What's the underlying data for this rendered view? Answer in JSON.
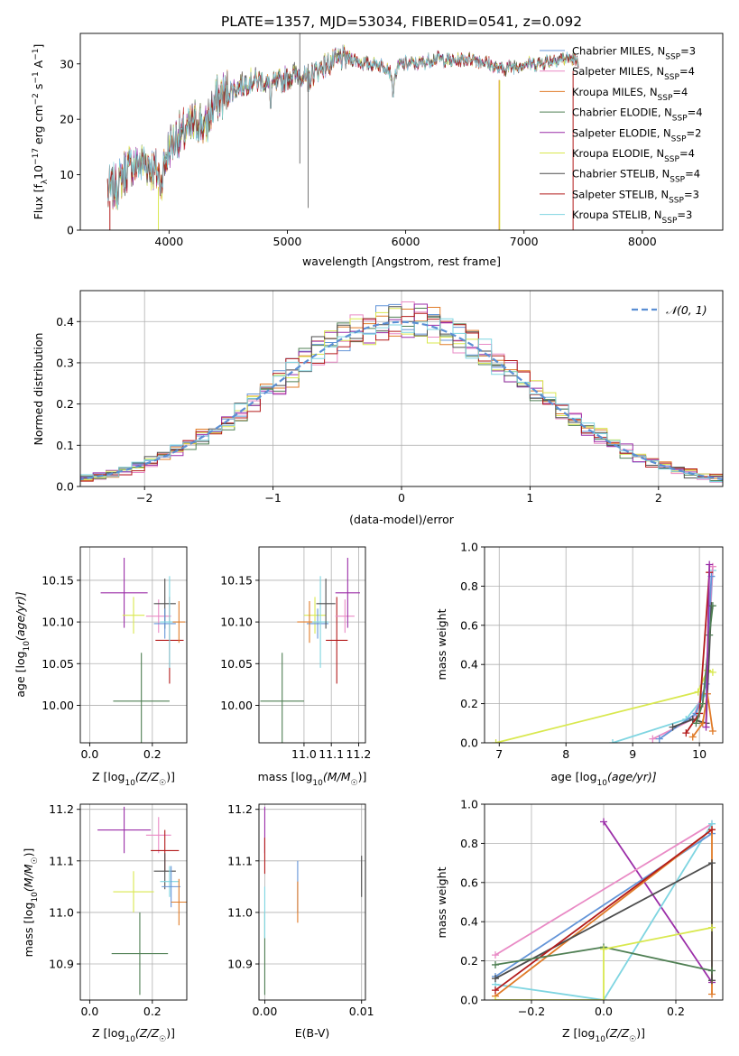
{
  "figure_title": "PLATE=1357, MJD=53034, FIBERID=0541, z=0.092",
  "colors": {
    "Chabrier MILES": "#6495d8",
    "Salpeter MILES": "#e98ac5",
    "Kroupa MILES": "#e07b28",
    "Chabrier ELODIE": "#4f7f53",
    "Salpeter ELODIE": "#9b2ea8",
    "Kroupa ELODIE": "#d9e84f",
    "Chabrier STELIB": "#4d4d4d",
    "Salpeter STELIB": "#b31b1b",
    "Kroupa STELIB": "#7fd5e1",
    "gauss": "#5b8fd4",
    "grid": "#b0b0b0"
  },
  "chart_data": [
    {
      "id": "spectrum",
      "type": "line",
      "title": "PLATE=1357, MJD=53034, FIBERID=0541, z=0.092",
      "xlabel": "wavelength [Angstrom, rest frame]",
      "ylabel": "Flux [f_λ 10⁻¹⁷ erg cm⁻² s⁻¹ A⁻¹]",
      "ylabel_parts": [
        "Flux [f",
        "λ",
        "10",
        "−17",
        " erg cm",
        "−2",
        " s",
        "−1",
        " A",
        "−1",
        "]"
      ],
      "xlim": [
        3250,
        8680
      ],
      "ylim": [
        0,
        35.5
      ],
      "xticks": [
        4000,
        5000,
        6000,
        7000,
        8000
      ],
      "yticks": [
        0,
        10,
        20,
        30
      ],
      "grid": false,
      "legend_position": "top-right",
      "continuum_points": [
        [
          3480,
          7
        ],
        [
          3560,
          8
        ],
        [
          3640,
          11
        ],
        [
          3720,
          12
        ],
        [
          3800,
          12
        ],
        [
          3880,
          11
        ],
        [
          3930,
          9
        ],
        [
          4000,
          15
        ],
        [
          4080,
          17
        ],
        [
          4150,
          18
        ],
        [
          4250,
          20
        ],
        [
          4300,
          18
        ],
        [
          4380,
          23
        ],
        [
          4500,
          25
        ],
        [
          4600,
          26
        ],
        [
          4700,
          27
        ],
        [
          4780,
          27
        ],
        [
          4860,
          26
        ],
        [
          4950,
          27
        ],
        [
          5050,
          28
        ],
        [
          5120,
          28
        ],
        [
          5170,
          27
        ],
        [
          5250,
          29
        ],
        [
          5350,
          30
        ],
        [
          5450,
          31
        ],
        [
          5550,
          31
        ],
        [
          5650,
          30
        ],
        [
          5750,
          30
        ],
        [
          5850,
          29.5
        ],
        [
          5893,
          27
        ],
        [
          5950,
          30
        ],
        [
          6100,
          30
        ],
        [
          6250,
          31
        ],
        [
          6400,
          30.5
        ],
        [
          6563,
          31
        ],
        [
          6700,
          30
        ],
        [
          6800,
          29
        ],
        [
          6900,
          29.5
        ],
        [
          7000,
          30
        ],
        [
          7100,
          30
        ],
        [
          7200,
          30.5
        ],
        [
          7300,
          31
        ],
        [
          7400,
          31
        ],
        [
          7460,
          30
        ]
      ],
      "wavelength_range": [
        3480,
        7460
      ],
      "dips": [
        [
          5893,
          24
        ],
        [
          3934,
          10
        ],
        [
          4861,
          22
        ],
        [
          5175,
          25
        ]
      ],
      "spikes": [
        {
          "x": 5105,
          "top": 35.5,
          "bottom": 12
        },
        {
          "x": 5175,
          "top": 30,
          "bottom": 4
        }
      ],
      "edges": [
        {
          "x": 3500,
          "color": "#b31b1b"
        },
        {
          "x": 3910,
          "color": "#d9e84f"
        },
        {
          "x": 6790,
          "color": "#e07b28"
        },
        {
          "x": 6795,
          "color": "#d9e84f"
        },
        {
          "x": 7415,
          "color": "#b31b1b"
        }
      ],
      "series": [
        {
          "name": "Chabrier MILES",
          "label": "Chabrier MILES, N",
          "sub": "SSP",
          "n": "=3"
        },
        {
          "name": "Salpeter MILES",
          "label": "Salpeter MILES, N",
          "sub": "SSP",
          "n": "=4"
        },
        {
          "name": "Kroupa MILES",
          "label": "Kroupa MILES, N",
          "sub": "SSP",
          "n": "=4"
        },
        {
          "name": "Chabrier ELODIE",
          "label": "Chabrier ELODIE, N",
          "sub": "SSP",
          "n": "=4"
        },
        {
          "name": "Salpeter ELODIE",
          "label": "Salpeter ELODIE, N",
          "sub": "SSP",
          "n": "=2"
        },
        {
          "name": "Kroupa ELODIE",
          "label": "Kroupa ELODIE, N",
          "sub": "SSP",
          "n": "=4"
        },
        {
          "name": "Chabrier STELIB",
          "label": "Chabrier STELIB, N",
          "sub": "SSP",
          "n": "=4"
        },
        {
          "name": "Salpeter STELIB",
          "label": "Salpeter STELIB, N",
          "sub": "SSP",
          "n": "=3"
        },
        {
          "name": "Kroupa STELIB",
          "label": "Kroupa STELIB, N",
          "sub": "SSP",
          "n": "=3"
        }
      ]
    },
    {
      "id": "residuals",
      "type": "histogram",
      "xlabel": "(data-model)/error",
      "ylabel": "Normed distribution",
      "xlim": [
        -2.5,
        2.5
      ],
      "ylim": [
        0,
        0.475
      ],
      "xticks": [
        -2,
        -1,
        0,
        1,
        2
      ],
      "yticks": [
        0.0,
        0.1,
        0.2,
        0.3,
        0.4
      ],
      "grid": true,
      "bin_width": 0.1,
      "legend_position": "top-right",
      "legend_label": "𝒩(0, 1)",
      "model_curve": "standard normal"
    },
    {
      "id": "age_vs_Z",
      "type": "errorbar",
      "xlabel": "Z [log₁₀(Z/Z☉)]",
      "ylabel": "age [log₁₀(age/yr)]",
      "xlabel_parts": [
        "Z [log",
        "10",
        "(Z/Z",
        "☉",
        ")]"
      ],
      "ylabel_parts": [
        "age  [log",
        "10",
        "(age/yr)]"
      ],
      "xlim": [
        -0.03,
        0.31
      ],
      "ylim": [
        9.955,
        10.19
      ],
      "xticks": [
        0.0,
        0.2
      ],
      "yticks": [
        10.0,
        10.05,
        10.1,
        10.15
      ],
      "grid": true,
      "points": [
        {
          "series": "Salpeter ELODIE",
          "x": 0.11,
          "xerr": 0.075,
          "y": 10.135,
          "yerr": 0.042
        },
        {
          "series": "Kroupa ELODIE",
          "x": 0.14,
          "xerr": 0.035,
          "y": 10.108,
          "yerr": 0.022
        },
        {
          "series": "Chabrier ELODIE",
          "x": 0.165,
          "xerr": 0.09,
          "y": 10.005,
          "yerr": 0.058
        },
        {
          "series": "Salpeter MILES",
          "x": 0.22,
          "xerr": 0.04,
          "y": 10.107,
          "yerr": 0.02
        },
        {
          "series": "Chabrier STELIB",
          "x": 0.24,
          "xerr": 0.035,
          "y": 10.122,
          "yerr": 0.03
        },
        {
          "series": "Salpeter STELIB",
          "x": 0.255,
          "xerr": 0.045,
          "y": 10.078,
          "yerr": 0.052
        },
        {
          "series": "Chabrier MILES",
          "x": 0.24,
          "xerr": 0.035,
          "y": 10.098,
          "yerr": 0.018
        },
        {
          "series": "Kroupa STELIB",
          "x": 0.255,
          "xerr": 0.03,
          "y": 10.1,
          "yerr": 0.055
        },
        {
          "series": "Kroupa MILES",
          "x": 0.285,
          "xerr": 0.02,
          "y": 10.1,
          "yerr": 0.025
        }
      ]
    },
    {
      "id": "age_vs_mass",
      "type": "errorbar",
      "xlabel": "mass [log₁₀(M/M☉)]",
      "xlabel_parts": [
        "mass [log",
        "10",
        "(M/M",
        "☉",
        ")]"
      ],
      "xlim": [
        10.835,
        11.225
      ],
      "ylim": [
        9.955,
        10.19
      ],
      "xticks": [
        11.0,
        11.1,
        11.2
      ],
      "yticks": [
        10.0,
        10.05,
        10.1,
        10.15
      ],
      "grid": true,
      "points": [
        {
          "series": "Chabrier ELODIE",
          "x": 10.92,
          "xerr": 0.08,
          "y": 10.005,
          "yerr": 0.058
        },
        {
          "series": "Kroupa ELODIE",
          "x": 11.04,
          "xerr": 0.04,
          "y": 10.108,
          "yerr": 0.022
        },
        {
          "series": "Chabrier MILES",
          "x": 11.05,
          "xerr": 0.04,
          "y": 10.098,
          "yerr": 0.018
        },
        {
          "series": "Kroupa MILES",
          "x": 11.02,
          "xerr": 0.045,
          "y": 10.1,
          "yerr": 0.025
        },
        {
          "series": "Kroupa STELIB",
          "x": 11.06,
          "xerr": 0.03,
          "y": 10.1,
          "yerr": 0.055
        },
        {
          "series": "Chabrier STELIB",
          "x": 11.08,
          "xerr": 0.035,
          "y": 10.122,
          "yerr": 0.03
        },
        {
          "series": "Salpeter STELIB",
          "x": 11.12,
          "xerr": 0.04,
          "y": 10.078,
          "yerr": 0.052
        },
        {
          "series": "Salpeter MILES",
          "x": 11.15,
          "xerr": 0.035,
          "y": 10.107,
          "yerr": 0.02
        },
        {
          "series": "Salpeter ELODIE",
          "x": 11.16,
          "xerr": 0.045,
          "y": 10.135,
          "yerr": 0.042
        }
      ]
    },
    {
      "id": "mass_weight_vs_age",
      "type": "line",
      "xlabel": "age [log₁₀(age/yr)]",
      "xlabel_parts": [
        "age  [log",
        "10",
        "(age/yr)]"
      ],
      "ylabel": "mass weight",
      "xlim": [
        6.78,
        10.35
      ],
      "ylim": [
        0,
        1.0
      ],
      "xticks": [
        7,
        8,
        9,
        10
      ],
      "yticks": [
        0.0,
        0.2,
        0.4,
        0.6,
        0.8,
        1.0
      ],
      "grid": true,
      "series": [
        {
          "name": "Kroupa ELODIE",
          "x": [
            6.95,
            9.98,
            10.12,
            10.2
          ],
          "y": [
            0.0,
            0.26,
            0.37,
            0.36
          ]
        },
        {
          "name": "Kroupa STELIB",
          "x": [
            8.7,
            9.8,
            10.1,
            10.2
          ],
          "y": [
            0.0,
            0.12,
            0.25,
            0.88
          ]
        },
        {
          "name": "Salpeter MILES",
          "x": [
            9.3,
            9.9,
            10.1,
            10.2
          ],
          "y": [
            0.02,
            0.12,
            0.3,
            0.9
          ]
        },
        {
          "name": "Chabrier MILES",
          "x": [
            9.4,
            9.95,
            10.1,
            10.18
          ],
          "y": [
            0.02,
            0.15,
            0.3,
            0.85
          ]
        },
        {
          "name": "Chabrier STELIB",
          "x": [
            9.6,
            9.9,
            10.1,
            10.18
          ],
          "y": [
            0.08,
            0.12,
            0.1,
            0.7
          ]
        },
        {
          "name": "Salpeter STELIB",
          "x": [
            9.8,
            10.0,
            10.15
          ],
          "y": [
            0.05,
            0.15,
            0.87
          ]
        },
        {
          "name": "Kroupa MILES",
          "x": [
            9.9,
            10.05,
            10.12,
            10.2
          ],
          "y": [
            0.03,
            0.1,
            0.25,
            0.06
          ]
        },
        {
          "name": "Chabrier ELODIE",
          "x": [
            9.95,
            10.05,
            10.15,
            10.2
          ],
          "y": [
            0.1,
            0.2,
            0.55,
            0.7
          ]
        },
        {
          "name": "Salpeter ELODIE",
          "x": [
            10.1,
            10.15
          ],
          "y": [
            0.08,
            0.91
          ]
        }
      ]
    },
    {
      "id": "mass_vs_Z",
      "type": "errorbar",
      "xlabel": "Z [log₁₀(Z/Z☉)]",
      "xlabel_parts": [
        "Z [log",
        "10",
        "(Z/Z",
        "☉",
        ")]"
      ],
      "ylabel": "mass [log₁₀(M/M☉)]",
      "ylabel_parts": [
        "mass [log",
        "10",
        "(M/M",
        "☉",
        ")]"
      ],
      "xlim": [
        -0.03,
        0.31
      ],
      "ylim": [
        10.83,
        11.21
      ],
      "xticks": [
        0.0,
        0.2
      ],
      "yticks": [
        10.9,
        11.0,
        11.1,
        11.2
      ],
      "grid": true,
      "points": [
        {
          "series": "Salpeter ELODIE",
          "x": 0.11,
          "xerr": 0.085,
          "y": 11.16,
          "yerr": 0.045
        },
        {
          "series": "Salpeter MILES",
          "x": 0.22,
          "xerr": 0.04,
          "y": 11.15,
          "yerr": 0.035
        },
        {
          "series": "Salpeter STELIB",
          "x": 0.24,
          "xerr": 0.045,
          "y": 11.12,
          "yerr": 0.04
        },
        {
          "series": "Chabrier STELIB",
          "x": 0.24,
          "xerr": 0.035,
          "y": 11.08,
          "yerr": 0.035
        },
        {
          "series": "Kroupa STELIB",
          "x": 0.255,
          "xerr": 0.03,
          "y": 11.06,
          "yerr": 0.03
        },
        {
          "series": "Chabrier MILES",
          "x": 0.26,
          "xerr": 0.03,
          "y": 11.05,
          "yerr": 0.04
        },
        {
          "series": "Kroupa ELODIE",
          "x": 0.14,
          "xerr": 0.065,
          "y": 11.04,
          "yerr": 0.04
        },
        {
          "series": "Kroupa MILES",
          "x": 0.285,
          "xerr": 0.025,
          "y": 11.02,
          "yerr": 0.045
        },
        {
          "series": "Chabrier ELODIE",
          "x": 0.16,
          "xerr": 0.09,
          "y": 10.92,
          "yerr": 0.08
        }
      ]
    },
    {
      "id": "mass_vs_EBV",
      "type": "errorbar",
      "xlabel": "E(B-V)",
      "xlim": [
        -0.0006,
        0.0104
      ],
      "ylim": [
        10.83,
        11.21
      ],
      "xticks": [
        0.0,
        0.01
      ],
      "yticks": [
        10.9,
        11.0,
        11.1,
        11.2
      ],
      "grid": true,
      "points": [
        {
          "series": "Chabrier ELODIE",
          "x": 0.0,
          "xerr": 0,
          "y": 10.92,
          "yerr": 0.08
        },
        {
          "series": "Kroupa STELIB",
          "x": 0.0,
          "xerr": 0,
          "y": 11.0,
          "yerr": 0.05
        },
        {
          "series": "Salpeter ELODIE",
          "x": 0.0,
          "xerr": 0,
          "y": 11.16,
          "yerr": 0.045
        },
        {
          "series": "Salpeter STELIB",
          "x": 0.0,
          "xerr": 0,
          "y": 11.11,
          "yerr": 0.035
        },
        {
          "series": "Chabrier MILES",
          "x": 0.0034,
          "xerr": 0,
          "y": 11.05,
          "yerr": 0.05
        },
        {
          "series": "Kroupa MILES",
          "x": 0.0034,
          "xerr": 0,
          "y": 11.02,
          "yerr": 0.04
        },
        {
          "series": "Chabrier STELIB",
          "x": 0.01,
          "xerr": 0,
          "y": 11.07,
          "yerr": 0.04
        }
      ]
    },
    {
      "id": "mass_weight_vs_Z",
      "type": "line",
      "xlabel": "Z [log₁₀(Z/Z☉)]",
      "xlabel_parts": [
        "Z [log",
        "10",
        "(Z/Z",
        "☉",
        ")]"
      ],
      "ylabel": "mass weight",
      "xlim": [
        -0.33,
        0.33
      ],
      "ylim": [
        0,
        1.0
      ],
      "xticks": [
        -0.2,
        0.0,
        0.2
      ],
      "yticks": [
        0.0,
        0.2,
        0.4,
        0.6,
        0.8,
        1.0
      ],
      "grid": true,
      "series": [
        {
          "name": "Salpeter ELODIE",
          "x": [
            0.0,
            0.3
          ],
          "y": [
            0.91,
            0.09
          ]
        },
        {
          "name": "Salpeter MILES",
          "x": [
            -0.3,
            0.3
          ],
          "y": [
            0.23,
            0.9
          ]
        },
        {
          "name": "Kroupa STELIB",
          "x": [
            -0.3,
            0.0,
            0.3
          ],
          "y": [
            0.08,
            0.0,
            0.9
          ]
        },
        {
          "name": "Chabrier MILES",
          "x": [
            -0.3,
            0.3
          ],
          "y": [
            0.12,
            0.85
          ]
        },
        {
          "name": "Kroupa MILES",
          "x": [
            -0.3,
            0.3,
            0.3
          ],
          "y": [
            0.02,
            0.87,
            0.03
          ]
        },
        {
          "name": "Chabrier STELIB",
          "x": [
            -0.3,
            0.3,
            0.3
          ],
          "y": [
            0.11,
            0.7,
            0.1
          ]
        },
        {
          "name": "Salpeter STELIB",
          "x": [
            -0.3,
            0.3
          ],
          "y": [
            0.05,
            0.87
          ]
        },
        {
          "name": "Chabrier ELODIE",
          "x": [
            -0.3,
            0.0,
            0.3
          ],
          "y": [
            0.18,
            0.27,
            0.15
          ]
        },
        {
          "name": "Kroupa ELODIE",
          "x": [
            -0.3,
            0.0,
            0.0,
            0.3
          ],
          "y": [
            0.0,
            0.0,
            0.26,
            0.37
          ]
        }
      ]
    }
  ]
}
